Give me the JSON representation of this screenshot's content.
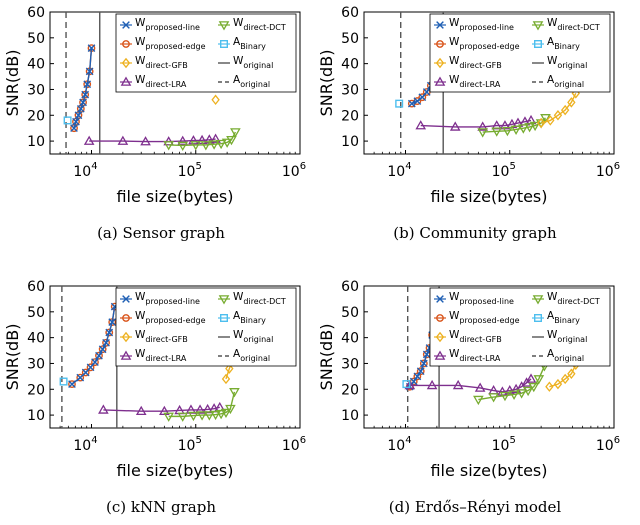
{
  "colors": {
    "proposed_line": "#1f5fb4",
    "proposed_edge": "#d9541a",
    "direct_gfb": "#edb120",
    "direct_lra": "#7e2f8e",
    "direct_dct": "#77ac30",
    "binary": "#4dbeee",
    "original": "#555555"
  },
  "legend": [
    {
      "key": "proposed_line",
      "main": "W",
      "sub": "proposed-line",
      "marker": "x"
    },
    {
      "key": "direct_dct",
      "main": "W",
      "sub": "direct-DCT",
      "marker": "tri-down"
    },
    {
      "key": "proposed_edge",
      "main": "W",
      "sub": "proposed-edge",
      "marker": "circle"
    },
    {
      "key": "binary",
      "main": "A",
      "sub": "Binary",
      "marker": "square"
    },
    {
      "key": "direct_gfb",
      "main": "W",
      "sub": "direct-GFB",
      "marker": "diamond"
    },
    {
      "key": "original_solid",
      "main": "W",
      "sub": "original",
      "marker": "solid"
    },
    {
      "key": "direct_lra",
      "main": "W",
      "sub": "direct-LRA",
      "marker": "tri-up"
    },
    {
      "key": "original_dash",
      "main": "A",
      "sub": "original",
      "marker": "dash"
    }
  ],
  "chart_data": [
    {
      "type": "line",
      "caption": "(a)  Sensor graph",
      "xlabel": "file size(bytes)",
      "ylabel": "SNR(dB)",
      "xscale": "log",
      "xlim": [
        4000,
        1000000
      ],
      "ylim": [
        5,
        60
      ],
      "xticks": [
        {
          "v": 10000,
          "base": "10",
          "exp": "4"
        },
        {
          "v": 100000,
          "base": "10",
          "exp": "5"
        },
        {
          "v": 1000000,
          "base": "10",
          "exp": "6"
        }
      ],
      "yticks": [
        10,
        20,
        30,
        40,
        50,
        60
      ],
      "legend_position": "top-right",
      "grid": false,
      "vlines": {
        "original_solid": 12000,
        "original_dash": 5700
      },
      "series": [
        {
          "key": "proposed_edge",
          "x": [
            6800,
            7100,
            7500,
            7900,
            8300,
            8700,
            9100,
            9600,
            10000
          ],
          "y": [
            15,
            17.5,
            20,
            22.5,
            25,
            28,
            32,
            37,
            46
          ]
        },
        {
          "key": "proposed_line",
          "x": [
            6800,
            7100,
            7500,
            7900,
            8300,
            8700,
            9100,
            9600,
            10000
          ],
          "y": [
            15,
            17.5,
            20,
            22.5,
            25,
            28,
            32,
            37,
            46
          ]
        },
        {
          "key": "direct_lra",
          "x": [
            9500,
            20000,
            33000,
            55000,
            75000,
            95000,
            115000,
            135000,
            155000
          ],
          "y": [
            10,
            10,
            9.8,
            9.8,
            10,
            10.2,
            10.3,
            10.5,
            10.8
          ]
        },
        {
          "key": "direct_dct",
          "x": [
            55000,
            75000,
            100000,
            125000,
            150000,
            175000,
            200000,
            220000,
            240000
          ],
          "y": [
            8.5,
            8.3,
            8.5,
            8.5,
            8.8,
            9,
            9.5,
            10.5,
            13.5
          ]
        },
        {
          "key": "direct_gfb",
          "x": [
            155000
          ],
          "y": [
            26
          ]
        },
        {
          "key": "binary",
          "x": [
            5900
          ],
          "y": [
            18
          ]
        }
      ]
    },
    {
      "type": "line",
      "caption": "(b)  Community graph",
      "xlabel": "file size(bytes)",
      "ylabel": "SNR(dB)",
      "xscale": "log",
      "xlim": [
        4000,
        1000000
      ],
      "ylim": [
        5,
        60
      ],
      "xticks": [
        {
          "v": 10000,
          "base": "10",
          "exp": "4"
        },
        {
          "v": 100000,
          "base": "10",
          "exp": "5"
        },
        {
          "v": 1000000,
          "base": "10",
          "exp": "6"
        }
      ],
      "yticks": [
        10,
        20,
        30,
        40,
        50,
        60
      ],
      "legend_position": "top-right",
      "grid": false,
      "vlines": {
        "original_solid": 23000,
        "original_dash": 9000
      },
      "series": [
        {
          "key": "proposed_edge",
          "x": [
            11500,
            13000,
            14500,
            16000,
            17500,
            19000,
            20500,
            21500,
            22500
          ],
          "y": [
            24.5,
            25.5,
            27,
            29,
            31.5,
            34.5,
            39,
            44,
            53
          ]
        },
        {
          "key": "proposed_line",
          "x": [
            11500,
            13000,
            14500,
            16000,
            17500,
            19000,
            20500,
            21500,
            22500
          ],
          "y": [
            24.5,
            25.5,
            27,
            29,
            31.5,
            34.5,
            39,
            44,
            53
          ]
        },
        {
          "key": "direct_lra",
          "x": [
            14000,
            30000,
            55000,
            75000,
            90000,
            105000,
            120000,
            140000,
            160000
          ],
          "y": [
            16,
            15.5,
            15.5,
            16,
            16,
            16.5,
            17,
            17.5,
            18
          ]
        },
        {
          "key": "direct_dct",
          "x": [
            55000,
            75000,
            95000,
            115000,
            135000,
            155000,
            175000,
            200000,
            220000
          ],
          "y": [
            13.5,
            13.8,
            14,
            14.5,
            15,
            15.5,
            16,
            17,
            19
          ]
        },
        {
          "key": "direct_gfb",
          "x": [
            200000,
            245000,
            290000,
            340000,
            390000,
            430000
          ],
          "y": [
            17,
            18,
            20,
            22,
            25,
            28.5
          ]
        },
        {
          "key": "binary",
          "x": [
            8700
          ],
          "y": [
            24.5
          ]
        }
      ]
    },
    {
      "type": "line",
      "caption": "(c)  kNN graph",
      "xlabel": "file size(bytes)",
      "ylabel": "SNR(dB)",
      "xscale": "log",
      "xlim": [
        4000,
        1000000
      ],
      "ylim": [
        5,
        60
      ],
      "xticks": [
        {
          "v": 10000,
          "base": "10",
          "exp": "4"
        },
        {
          "v": 100000,
          "base": "10",
          "exp": "5"
        },
        {
          "v": 1000000,
          "base": "10",
          "exp": "6"
        }
      ],
      "yticks": [
        10,
        20,
        30,
        40,
        50,
        60
      ],
      "legend_position": "top-right",
      "grid": false,
      "vlines": {
        "original_solid": 17500,
        "original_dash": 5200
      },
      "series": [
        {
          "key": "proposed_edge",
          "x": [
            6500,
            7800,
            8800,
            9800,
            10800,
            11800,
            12800,
            13800,
            14800,
            15800,
            16700
          ],
          "y": [
            22,
            24.5,
            26.5,
            28.5,
            30.5,
            33,
            35.5,
            38,
            42,
            46,
            52
          ]
        },
        {
          "key": "proposed_line",
          "x": [
            6500,
            7800,
            8800,
            9800,
            10800,
            11800,
            12800,
            13800,
            14800,
            15800,
            16700
          ],
          "y": [
            22,
            24.5,
            26.5,
            28.5,
            30.5,
            33,
            35.5,
            38,
            42,
            46,
            52
          ]
        },
        {
          "key": "direct_lra",
          "x": [
            13000,
            30000,
            50000,
            70000,
            90000,
            110000,
            130000,
            150000,
            170000
          ],
          "y": [
            12,
            11.5,
            11.5,
            11.8,
            12,
            12,
            12.2,
            12.5,
            13
          ]
        },
        {
          "key": "direct_dct",
          "x": [
            55000,
            75000,
            95000,
            115000,
            135000,
            155000,
            175000,
            195000,
            215000,
            235000
          ],
          "y": [
            9.5,
            9.5,
            9.8,
            10,
            10,
            10.2,
            10.5,
            11,
            12.5,
            19
          ]
        },
        {
          "key": "direct_gfb",
          "x": [
            195000,
            210000,
            225000
          ],
          "y": [
            24,
            28,
            31
          ]
        },
        {
          "key": "binary",
          "x": [
            5400
          ],
          "y": [
            23
          ]
        }
      ]
    },
    {
      "type": "line",
      "caption": "(d)  Erdős–Rényi model",
      "xlabel": "file size(bytes)",
      "ylabel": "SNR(dB)",
      "xscale": "log",
      "xlim": [
        4000,
        1000000
      ],
      "ylim": [
        5,
        60
      ],
      "xticks": [
        {
          "v": 10000,
          "base": "10",
          "exp": "4"
        },
        {
          "v": 100000,
          "base": "10",
          "exp": "5"
        },
        {
          "v": 1000000,
          "base": "10",
          "exp": "6"
        }
      ],
      "yticks": [
        10,
        20,
        30,
        40,
        50,
        60
      ],
      "legend_position": "top-right",
      "grid": false,
      "vlines": {
        "original_solid": 21000,
        "original_dash": 10500
      },
      "series": [
        {
          "key": "proposed_edge",
          "x": [
            11000,
            12000,
            13000,
            14000,
            15000,
            16000,
            17000,
            18000,
            19500
          ],
          "y": [
            21,
            23,
            25,
            27,
            30,
            33.5,
            36,
            41,
            49.5
          ]
        },
        {
          "key": "proposed_line",
          "x": [
            11000,
            12000,
            13000,
            14000,
            15000,
            16000,
            17000,
            18000,
            19500
          ],
          "y": [
            21,
            23,
            25,
            27,
            30,
            33.5,
            36,
            41,
            49.5
          ]
        },
        {
          "key": "direct_lra",
          "x": [
            11000,
            18000,
            32000,
            52000,
            70000,
            85000,
            100000,
            115000,
            130000,
            145000,
            160000
          ],
          "y": [
            21.5,
            21.5,
            21.5,
            20.5,
            19.5,
            19,
            19.5,
            20,
            21,
            22.5,
            24
          ]
        },
        {
          "key": "direct_dct",
          "x": [
            50000,
            70000,
            90000,
            110000,
            130000,
            150000,
            170000,
            190000,
            215000
          ],
          "y": [
            16,
            17,
            17.5,
            18,
            18.5,
            19.5,
            21,
            24,
            29
          ]
        },
        {
          "key": "direct_gfb",
          "x": [
            240000,
            290000,
            340000,
            390000,
            430000
          ],
          "y": [
            21,
            22,
            24,
            26,
            29.5
          ]
        },
        {
          "key": "binary",
          "x": [
            10200
          ],
          "y": [
            22
          ]
        }
      ]
    }
  ]
}
